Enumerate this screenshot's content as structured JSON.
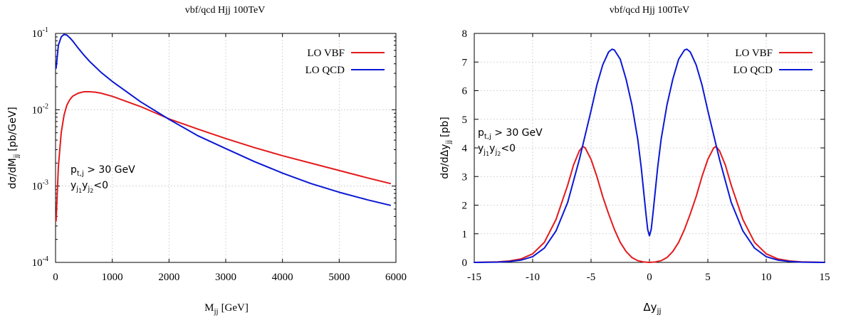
{
  "chart_data": [
    {
      "type": "line",
      "title": "vbf/qcd Hjj 100TeV",
      "xlabel": "M",
      "xlabel_sub": "jj",
      "xlabel_unit": "[GeV]",
      "ylabel": "dσ/dM",
      "ylabel_sub": "jj",
      "ylabel_unit": "[pb/GeV]",
      "xlim": [
        0,
        6000
      ],
      "ylim": [
        0.0001,
        0.1
      ],
      "yscale": "log",
      "grid": true,
      "legend_position": "top-right",
      "x_ticks": [
        "0",
        "1000",
        "2000",
        "3000",
        "4000",
        "5000",
        "6000"
      ],
      "y_ticks": [
        {
          "base": "10",
          "exp": "-4"
        },
        {
          "base": "10",
          "exp": "-3"
        },
        {
          "base": "10",
          "exp": "-2"
        },
        {
          "base": "10",
          "exp": "-1"
        }
      ],
      "annotation": {
        "line1_p": "p",
        "line1_sub": "t,j",
        "line1_rest": " > 30 GeV",
        "line2_y1": "y",
        "line2_j1": "j",
        "line2_s1": "1",
        "line2_y2": "y",
        "line2_j2": "j",
        "line2_s2": "2",
        "line2_rest": "<0"
      },
      "series": [
        {
          "name": "LO VBF",
          "color": "#e31a1c",
          "x": [
            10,
            50,
            100,
            150,
            200,
            250,
            300,
            400,
            500,
            600,
            700,
            800,
            1000,
            1500,
            2000,
            2500,
            3000,
            3500,
            4000,
            4500,
            5000,
            5500,
            5900
          ],
          "y": [
            0.00035,
            0.0018,
            0.005,
            0.0085,
            0.0115,
            0.0135,
            0.015,
            0.0165,
            0.0172,
            0.0172,
            0.017,
            0.0165,
            0.015,
            0.011,
            0.0076,
            0.0056,
            0.0042,
            0.0032,
            0.0025,
            0.002,
            0.0016,
            0.00128,
            0.00108
          ]
        },
        {
          "name": "LO QCD",
          "color": "#0a18d4",
          "x": [
            10,
            50,
            100,
            150,
            200,
            250,
            300,
            400,
            500,
            600,
            800,
            1000,
            1500,
            2000,
            2500,
            3000,
            3500,
            4000,
            4500,
            5000,
            5500,
            5900
          ],
          "y": [
            0.035,
            0.07,
            0.09,
            0.097,
            0.095,
            0.088,
            0.08,
            0.064,
            0.052,
            0.043,
            0.031,
            0.0235,
            0.0127,
            0.0075,
            0.0046,
            0.0031,
            0.0021,
            0.00148,
            0.00108,
            0.00083,
            0.00066,
            0.00056
          ]
        }
      ]
    },
    {
      "type": "line",
      "title": "vbf/qcd Hjj 100TeV",
      "xlabel": "Δy",
      "xlabel_sub": "jj",
      "ylabel": "dσ/dΔy",
      "ylabel_sub": "jj",
      "ylabel_unit": "[pb]",
      "xlim": [
        -15,
        15
      ],
      "ylim": [
        0,
        8
      ],
      "grid": true,
      "legend_position": "top-right",
      "x_ticks": [
        "-15",
        "-10",
        "-5",
        "0",
        "5",
        "10",
        "15"
      ],
      "y_ticks": [
        "0",
        "1",
        "2",
        "3",
        "4",
        "5",
        "6",
        "7",
        "8"
      ],
      "annotation": {
        "line1_p": "p",
        "line1_sub": "t,j",
        "line1_rest": " > 30 GeV",
        "line2_y1": "y",
        "line2_j1": "j",
        "line2_s1": "1",
        "line2_y2": "y",
        "line2_j2": "j",
        "line2_s2": "2",
        "line2_rest": "<0"
      },
      "series": [
        {
          "name": "LO VBF",
          "color": "#e31a1c",
          "x": [
            -15,
            -14,
            -13,
            -12,
            -11,
            -10,
            -9,
            -8,
            -7,
            -6.5,
            -6,
            -5.7,
            -5.5,
            -5,
            -4.5,
            -4,
            -3.5,
            -3,
            -2.5,
            -2,
            -1.5,
            -1,
            -0.5,
            0,
            0.5,
            1,
            1.5,
            2,
            2.5,
            3,
            3.5,
            4,
            4.5,
            5,
            5.5,
            5.7,
            6,
            6.5,
            7,
            8,
            9,
            10,
            11,
            12,
            13,
            14,
            15
          ],
          "y": [
            0,
            0.01,
            0.02,
            0.05,
            0.12,
            0.3,
            0.7,
            1.5,
            2.7,
            3.4,
            3.9,
            4.05,
            4.0,
            3.6,
            3.0,
            2.3,
            1.7,
            1.15,
            0.7,
            0.38,
            0.17,
            0.06,
            0.015,
            0,
            0.015,
            0.06,
            0.17,
            0.38,
            0.7,
            1.15,
            1.7,
            2.3,
            3.0,
            3.6,
            4.0,
            4.05,
            3.9,
            3.4,
            2.7,
            1.5,
            0.7,
            0.3,
            0.12,
            0.05,
            0.02,
            0.01,
            0
          ]
        },
        {
          "name": "LO QCD",
          "color": "#0a18d4",
          "x": [
            -15,
            -13,
            -12,
            -11,
            -10,
            -9,
            -8,
            -7,
            -6,
            -5,
            -4.5,
            -4,
            -3.5,
            -3.2,
            -3,
            -2.5,
            -2,
            -1.5,
            -1,
            -0.7,
            -0.5,
            -0.3,
            -0.15,
            0,
            0.15,
            0.3,
            0.5,
            0.7,
            1,
            1.5,
            2,
            2.5,
            3,
            3.2,
            3.5,
            4,
            4.5,
            5,
            6,
            7,
            8,
            9,
            10,
            11,
            12,
            13,
            15
          ],
          "y": [
            0,
            0.01,
            0.03,
            0.08,
            0.2,
            0.5,
            1.1,
            2.1,
            3.6,
            5.3,
            6.2,
            6.9,
            7.35,
            7.45,
            7.42,
            7.1,
            6.4,
            5.5,
            4.3,
            3.3,
            2.5,
            1.7,
            1.15,
            0.93,
            1.15,
            1.7,
            2.5,
            3.3,
            4.3,
            5.5,
            6.4,
            7.1,
            7.42,
            7.45,
            7.35,
            6.9,
            6.2,
            5.3,
            3.6,
            2.1,
            1.1,
            0.5,
            0.2,
            0.08,
            0.03,
            0.01,
            0
          ]
        }
      ]
    }
  ]
}
